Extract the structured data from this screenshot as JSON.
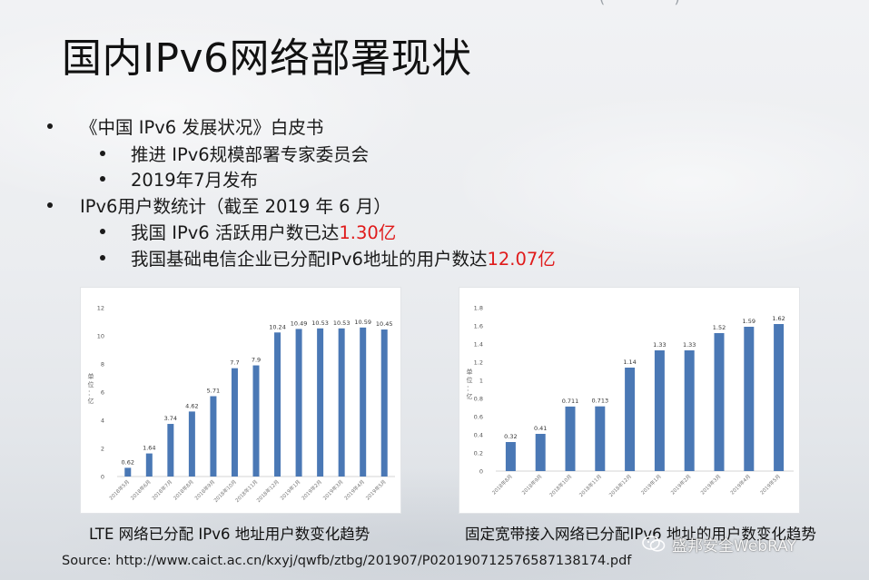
{
  "slide": {
    "title": "国内IPv6网络部署现状",
    "bullets": [
      {
        "text": "《中国 IPv6 发展状况》白皮书",
        "level": 1
      },
      {
        "text": "推进 IPv6规模部署专家委员会",
        "level": 2
      },
      {
        "text": "2019年7月发布",
        "level": 2
      },
      {
        "text": "IPv6用户数统计（截至 2019 年 6 月）",
        "level": 1
      },
      {
        "text": "我国 IPv6 活跃用户数已达",
        "highlight": "1.30亿",
        "level": 2
      },
      {
        "text": "我国基础电信企业已分配IPv6地址的用户数达",
        "highlight": "12.07亿",
        "level": 2
      }
    ],
    "highlight_color": "#e01b1b",
    "captions": {
      "left": "LTE 网络已分配 IPv6 地址用户数变化趋势",
      "right": "固定宽带接入网络已分配IPv6 地址的用户数变化趋势"
    },
    "source": "Source: http://www.caict.ac.cn/kxyj/qwfb/ztbg/201907/P020190712576587138174.pdf",
    "watermark": "盛邦安全WebRAY"
  },
  "chart_data": [
    {
      "type": "bar",
      "ylabel": "单位：亿",
      "ylim": [
        0,
        12
      ],
      "yticks": [
        "0",
        "2",
        "4",
        "6",
        "8",
        "10",
        "12"
      ],
      "categories": [
        "2018年5月",
        "2018年6月",
        "2018年7月",
        "2018年8月",
        "2018年9月",
        "2018年10月",
        "2018年11月",
        "2018年12月",
        "2019年1月",
        "2019年2月",
        "2019年3月",
        "2019年4月",
        "2019年5月"
      ],
      "values": [
        0.62,
        1.64,
        3.74,
        4.62,
        5.71,
        7.7,
        7.9,
        10.24,
        10.49,
        10.53,
        10.53,
        10.59,
        10.45
      ],
      "labels": [
        "0.62",
        "1.64",
        "3.74",
        "4.62",
        "5.71",
        "7.7",
        "7.9",
        "10.24",
        "10.49",
        "10.53",
        "10.53",
        "10.59",
        "10.45"
      ],
      "bar_color": "#4a78b5"
    },
    {
      "type": "bar",
      "ylabel": "单位：亿",
      "ylim": [
        0,
        1.8
      ],
      "yticks": [
        "0",
        "0.2",
        "0.4",
        "0.6",
        "0.8",
        "1",
        "1.2",
        "1.4",
        "1.6",
        "1.8"
      ],
      "categories": [
        "2018年8月",
        "2018年9月",
        "2018年10月",
        "2018年11月",
        "2018年12月",
        "2019年1月",
        "2019年2月",
        "2019年3月",
        "2019年4月",
        "2019年5月"
      ],
      "values": [
        0.32,
        0.41,
        0.711,
        0.713,
        1.14,
        1.33,
        1.33,
        1.52,
        1.59,
        1.62
      ],
      "labels": [
        "0.32",
        "0.41",
        "0.711",
        "0.713",
        "1.14",
        "1.33",
        "1.33",
        "1.52",
        "1.59",
        "1.62"
      ],
      "bar_color": "#4a78b5"
    }
  ]
}
